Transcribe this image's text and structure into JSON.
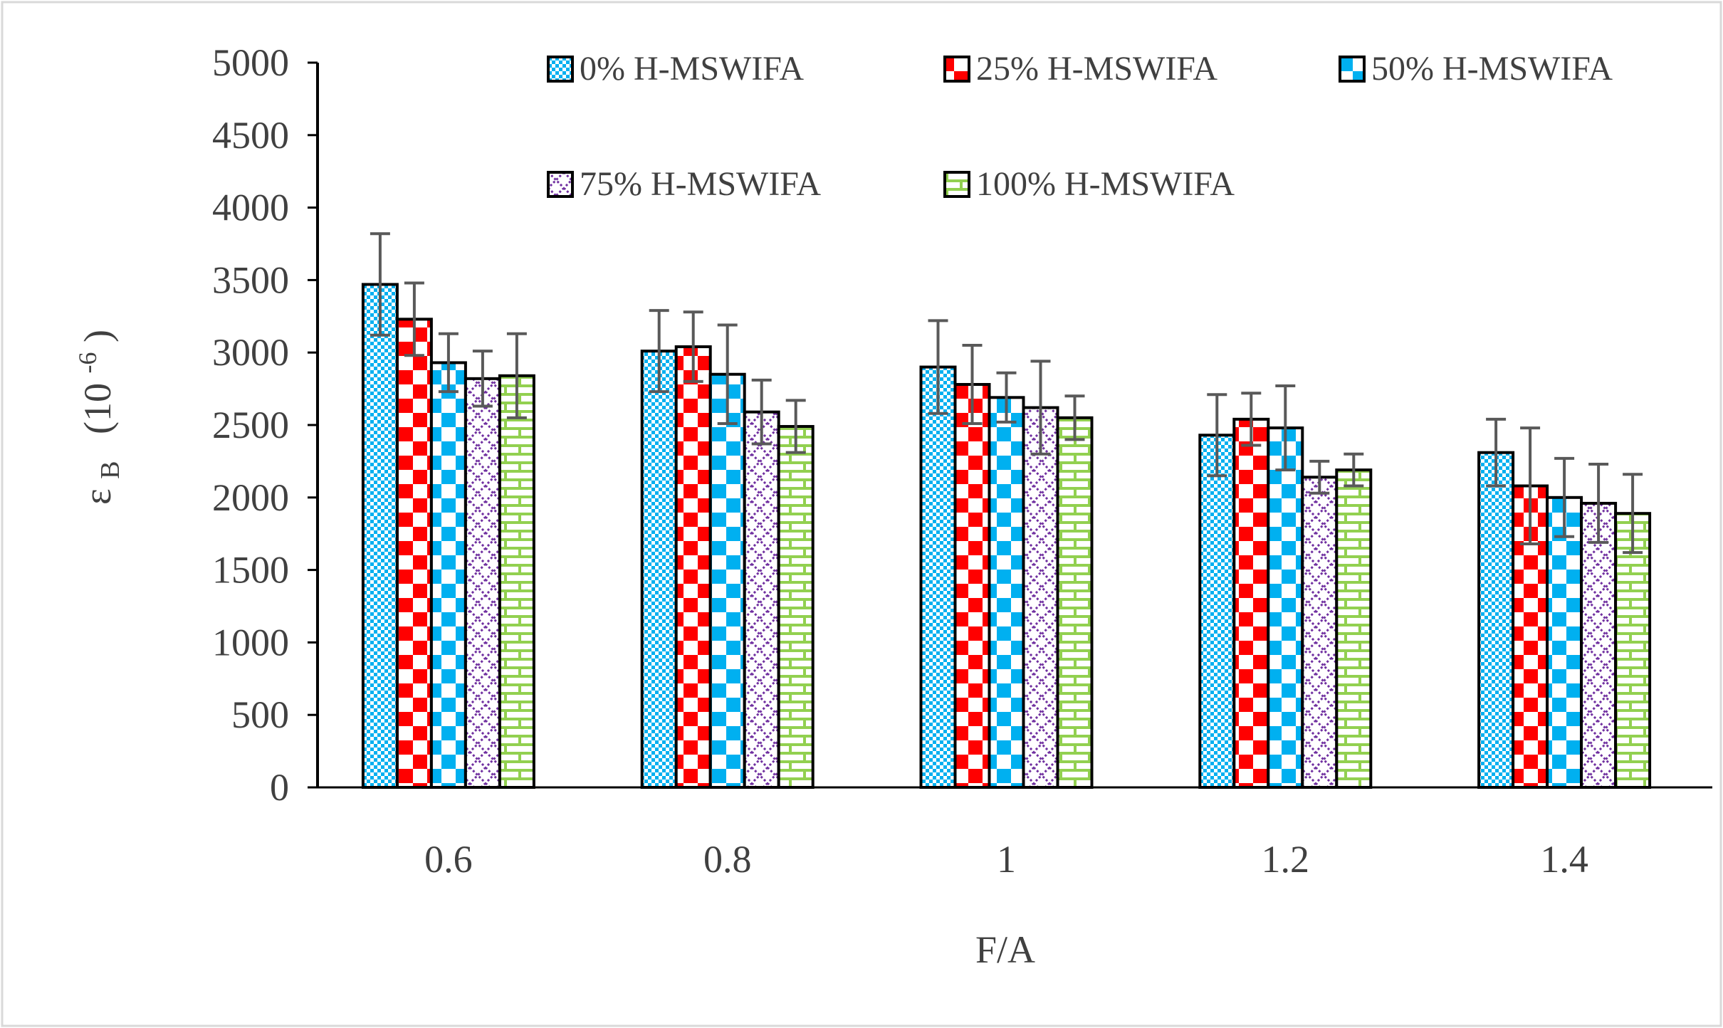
{
  "chart_data": {
    "type": "bar",
    "xlabel": "F/A",
    "ylabel": {
      "symbol": "ε",
      "subscript": "B",
      "unit_prefix": "(10",
      "unit_exponent": "-6",
      "unit_suffix": ")"
    },
    "ylim": [
      0,
      5000
    ],
    "yticks": [
      0,
      500,
      1000,
      1500,
      2000,
      2500,
      3000,
      3500,
      4000,
      4500,
      5000
    ],
    "categories": [
      "0.6",
      "0.8",
      "1",
      "1.2",
      "1.4"
    ],
    "grid": false,
    "legend_position": "top",
    "series": [
      {
        "name": "0% H-MSWIFA",
        "pattern": "checker-fine",
        "color": "#00B0F0",
        "values": [
          3470,
          3010,
          2900,
          2430,
          2310
        ],
        "errors": [
          350,
          280,
          320,
          280,
          230
        ]
      },
      {
        "name": "25% H-MSWIFA",
        "pattern": "checker-large",
        "color": "#FF0000",
        "values": [
          3230,
          3040,
          2780,
          2540,
          2080
        ],
        "errors": [
          250,
          240,
          270,
          180,
          400
        ]
      },
      {
        "name": "50% H-MSWIFA",
        "pattern": "checker-large",
        "color": "#00B0F0",
        "values": [
          2930,
          2850,
          2690,
          2480,
          2000
        ],
        "errors": [
          200,
          340,
          170,
          290,
          270
        ]
      },
      {
        "name": "75% H-MSWIFA",
        "pattern": "diamond",
        "color": "#7030A0",
        "values": [
          2820,
          2590,
          2620,
          2140,
          1960
        ],
        "errors": [
          190,
          220,
          320,
          110,
          270
        ]
      },
      {
        "name": "100% H-MSWIFA",
        "pattern": "brick",
        "color": "#92D050",
        "values": [
          2840,
          2490,
          2550,
          2190,
          1890
        ],
        "errors": [
          290,
          180,
          150,
          110,
          270
        ]
      }
    ]
  }
}
